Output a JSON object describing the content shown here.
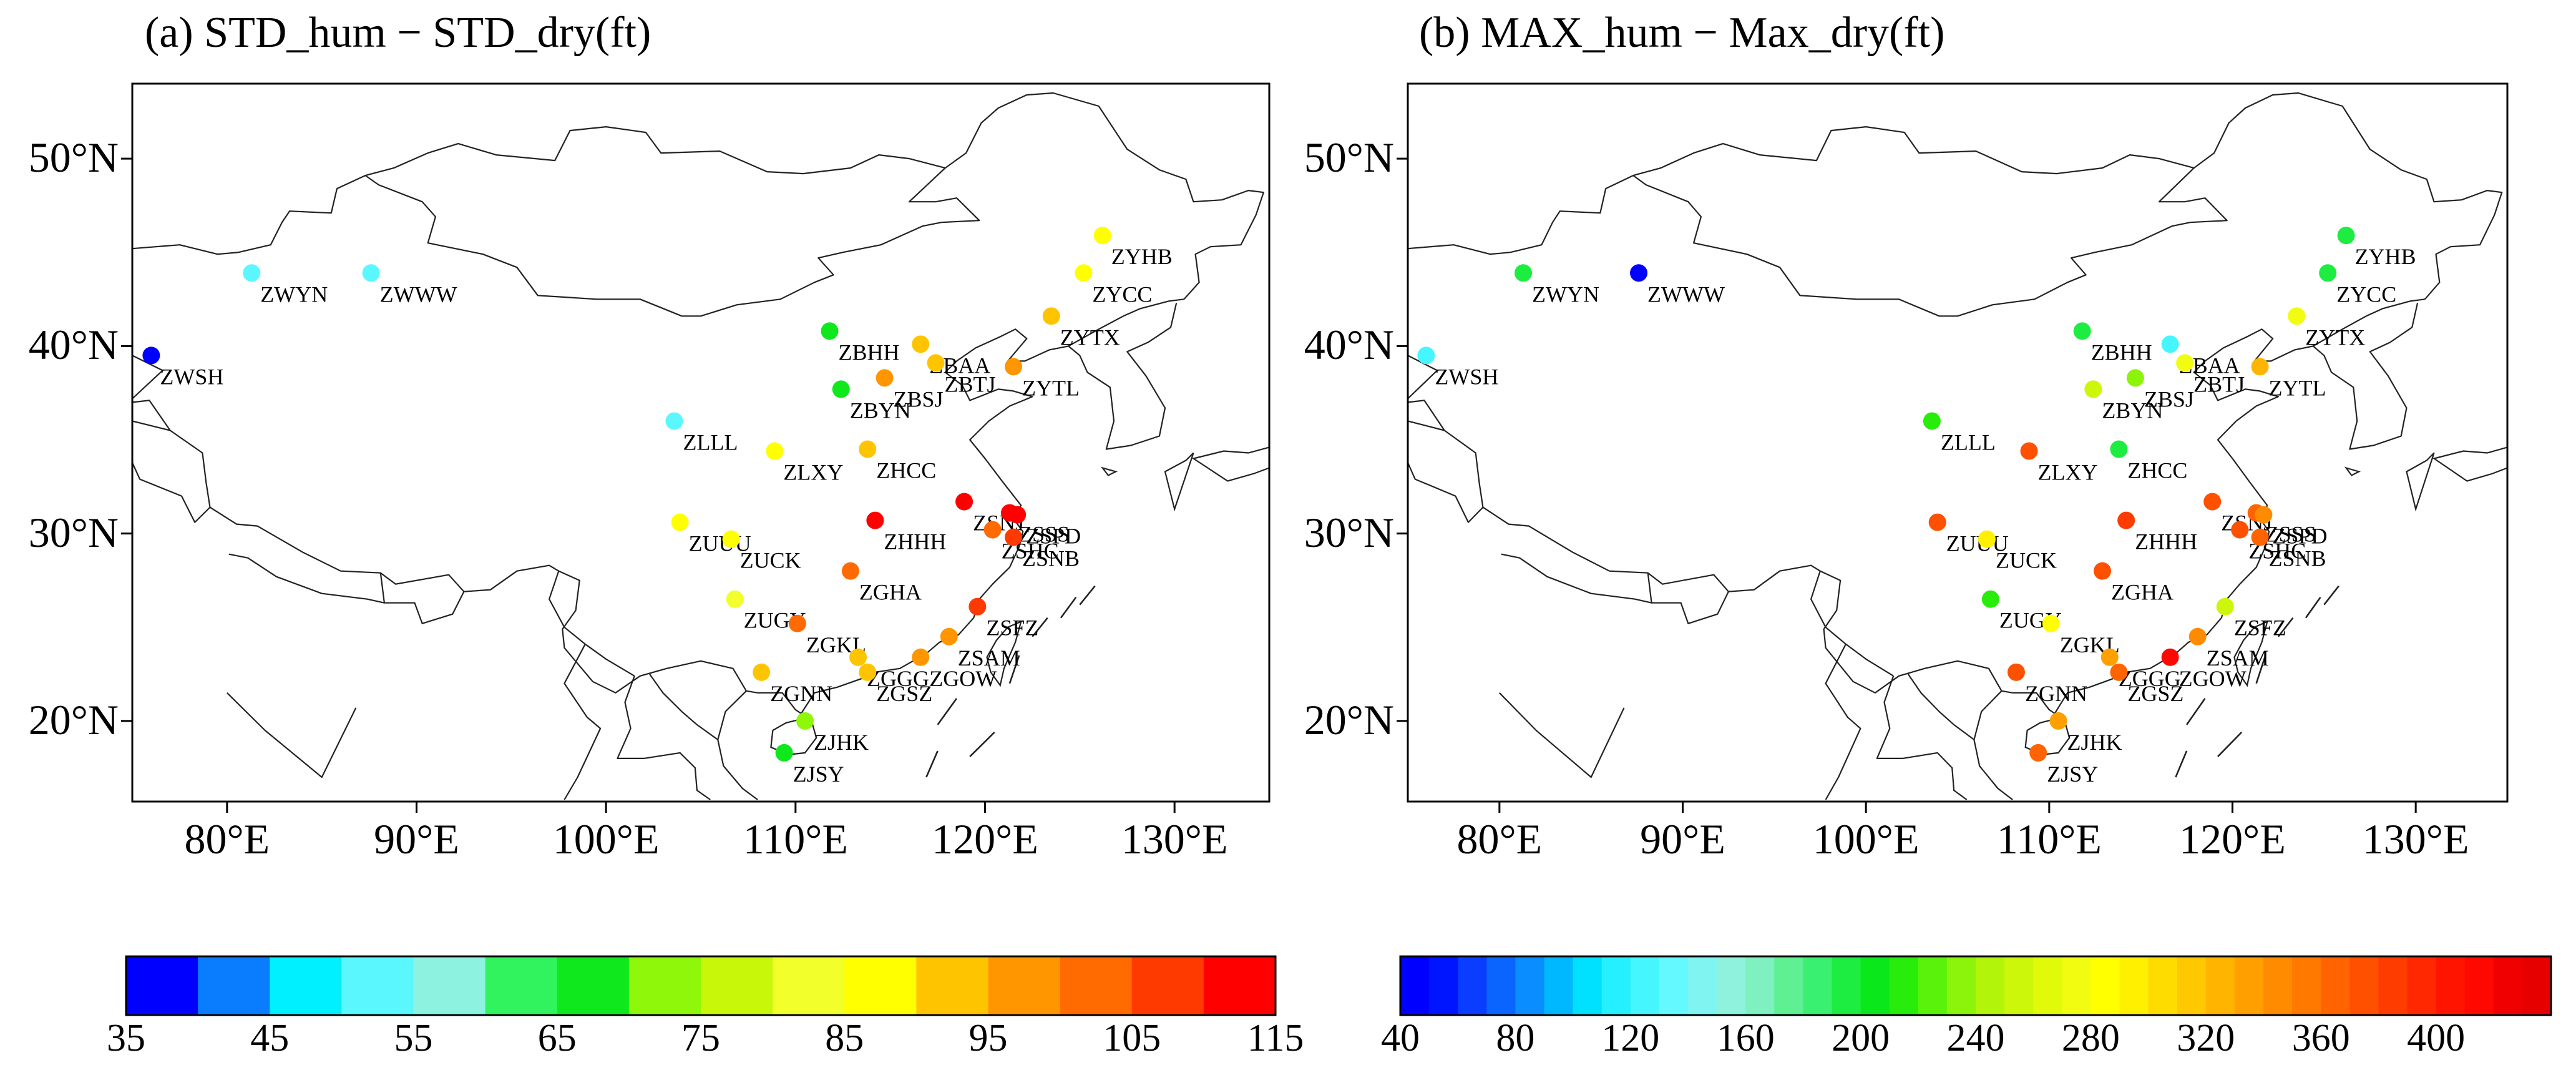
{
  "panels": [
    {
      "id": "a",
      "title": "(a) STD_hum − STD_dry(ft)",
      "lat_labels": [
        "50°N",
        "40°N",
        "30°N",
        "20°N"
      ],
      "lon_labels": [
        "80°E",
        "90°E",
        "100°E",
        "110°E",
        "120°E",
        "130°E"
      ],
      "colorbar": {
        "min": 35,
        "max": 115,
        "step": 5,
        "tick_values": [
          35,
          45,
          55,
          65,
          75,
          85,
          95,
          105,
          115
        ],
        "tick_labels": [
          "35",
          "45",
          "55",
          "65",
          "75",
          "85",
          "95",
          "105",
          "115"
        ],
        "colors": [
          "#0000ff",
          "#0a7dff",
          "#00f0ff",
          "#5af7ff",
          "#8ef2e0",
          "#31f35e",
          "#0fe81c",
          "#8ff70a",
          "#c9f70a",
          "#f2ff2a",
          "#ffff00",
          "#ffc400",
          "#ff9600",
          "#ff6b00",
          "#ff3a00",
          "#ff0000"
        ]
      },
      "stations": [
        {
          "code": "ZWSH",
          "lon": 76.0,
          "lat": 39.5,
          "value": 37
        },
        {
          "code": "ZWYN",
          "lon": 81.3,
          "lat": 43.9,
          "value": 53
        },
        {
          "code": "ZWWW",
          "lon": 87.6,
          "lat": 43.9,
          "value": 53
        },
        {
          "code": "ZYHB",
          "lon": 126.2,
          "lat": 45.9,
          "value": 85
        },
        {
          "code": "ZYCC",
          "lon": 125.2,
          "lat": 43.9,
          "value": 86
        },
        {
          "code": "ZYTX",
          "lon": 123.5,
          "lat": 41.6,
          "value": 93
        },
        {
          "code": "ZBHH",
          "lon": 111.8,
          "lat": 40.8,
          "value": 68
        },
        {
          "code": "ZBAA",
          "lon": 116.6,
          "lat": 40.1,
          "value": 93
        },
        {
          "code": "ZBTJ",
          "lon": 117.4,
          "lat": 39.1,
          "value": 90
        },
        {
          "code": "ZYTL",
          "lon": 121.5,
          "lat": 38.9,
          "value": 99
        },
        {
          "code": "ZBYN",
          "lon": 112.4,
          "lat": 37.7,
          "value": 68
        },
        {
          "code": "ZBSJ",
          "lon": 114.7,
          "lat": 38.3,
          "value": 99
        },
        {
          "code": "ZLLL",
          "lon": 103.6,
          "lat": 36.0,
          "value": 53
        },
        {
          "code": "ZLXY",
          "lon": 108.9,
          "lat": 34.4,
          "value": 85
        },
        {
          "code": "ZHCC",
          "lon": 113.8,
          "lat": 34.5,
          "value": 93
        },
        {
          "code": "ZSNJ",
          "lon": 118.9,
          "lat": 31.7,
          "value": 110
        },
        {
          "code": "ZSSS",
          "lon": 121.3,
          "lat": 31.1,
          "value": 110
        },
        {
          "code": "ZSPD",
          "lon": 121.7,
          "lat": 31.0,
          "value": 113
        },
        {
          "code": "ZSHC",
          "lon": 120.4,
          "lat": 30.2,
          "value": 103
        },
        {
          "code": "ZSNB",
          "lon": 121.5,
          "lat": 29.8,
          "value": 106
        },
        {
          "code": "ZUUU",
          "lon": 103.9,
          "lat": 30.6,
          "value": 85
        },
        {
          "code": "ZUCK",
          "lon": 106.6,
          "lat": 29.7,
          "value": 85
        },
        {
          "code": "ZHHH",
          "lon": 114.2,
          "lat": 30.7,
          "value": 113
        },
        {
          "code": "ZGHA",
          "lon": 112.9,
          "lat": 28.0,
          "value": 103
        },
        {
          "code": "ZUGY",
          "lon": 106.8,
          "lat": 26.5,
          "value": 83
        },
        {
          "code": "ZSFZ",
          "lon": 119.6,
          "lat": 26.1,
          "value": 108
        },
        {
          "code": "ZGKL",
          "lon": 110.1,
          "lat": 25.2,
          "value": 103
        },
        {
          "code": "ZSAM",
          "lon": 118.1,
          "lat": 24.5,
          "value": 99
        },
        {
          "code": "ZGGG",
          "lon": 113.3,
          "lat": 23.4,
          "value": 93
        },
        {
          "code": "ZGNN",
          "lon": 108.2,
          "lat": 22.6,
          "value": 93
        },
        {
          "code": "ZGOW",
          "lon": 116.6,
          "lat": 23.4,
          "value": 99
        },
        {
          "code": "ZGSZ",
          "lon": 113.8,
          "lat": 22.6,
          "value": 93
        },
        {
          "code": "ZJHK",
          "lon": 110.5,
          "lat": 20.0,
          "value": 73
        },
        {
          "code": "ZJSY",
          "lon": 109.4,
          "lat": 18.3,
          "value": 68
        }
      ]
    },
    {
      "id": "b",
      "title": "(b) MAX_hum − Max_dry(ft)",
      "lat_labels": [
        "50°N",
        "40°N",
        "30°N",
        "20°N"
      ],
      "lon_labels": [
        "80°E",
        "90°E",
        "100°E",
        "110°E",
        "120°E",
        "130°E"
      ],
      "colorbar": {
        "min": 40,
        "max": 440,
        "step": 10,
        "tick_values": [
          40,
          80,
          120,
          160,
          200,
          240,
          280,
          320,
          360,
          400
        ],
        "tick_labels": [
          "40",
          "80",
          "120",
          "160",
          "200",
          "240",
          "280",
          "320",
          "360",
          "400"
        ],
        "colors": [
          "#0000ff",
          "#0015ff",
          "#0a3dff",
          "#0a65ff",
          "#0a8dff",
          "#00b8ff",
          "#00e0ff",
          "#24f0ff",
          "#46f6ff",
          "#64f8ff",
          "#80f4f0",
          "#8ff2dc",
          "#7ff0c0",
          "#5ef092",
          "#3af070",
          "#1ced40",
          "#0ae81c",
          "#28ec0a",
          "#5af20a",
          "#8cf40a",
          "#b2f40a",
          "#ccf60a",
          "#e0fa0a",
          "#f2fc10",
          "#ffff00",
          "#fff000",
          "#ffdc00",
          "#ffc800",
          "#ffb400",
          "#ffa000",
          "#ff8c00",
          "#ff7800",
          "#ff6400",
          "#ff5000",
          "#ff3c00",
          "#ff2800",
          "#ff1400",
          "#ff0800",
          "#f00000",
          "#e60000"
        ]
      },
      "stations": [
        {
          "code": "ZWSH",
          "lon": 76.0,
          "lat": 39.5,
          "value": 125
        },
        {
          "code": "ZWYN",
          "lon": 81.3,
          "lat": 43.9,
          "value": 190
        },
        {
          "code": "ZWWW",
          "lon": 87.6,
          "lat": 43.9,
          "value": 45
        },
        {
          "code": "ZYHB",
          "lon": 126.2,
          "lat": 45.9,
          "value": 195
        },
        {
          "code": "ZYCC",
          "lon": 125.2,
          "lat": 43.9,
          "value": 195
        },
        {
          "code": "ZYTX",
          "lon": 123.5,
          "lat": 41.6,
          "value": 275
        },
        {
          "code": "ZBHH",
          "lon": 111.8,
          "lat": 40.8,
          "value": 195
        },
        {
          "code": "ZBAA",
          "lon": 116.6,
          "lat": 40.1,
          "value": 125
        },
        {
          "code": "ZBTJ",
          "lon": 117.4,
          "lat": 39.1,
          "value": 275
        },
        {
          "code": "ZYTL",
          "lon": 121.5,
          "lat": 38.9,
          "value": 325
        },
        {
          "code": "ZBYN",
          "lon": 112.4,
          "lat": 37.7,
          "value": 255
        },
        {
          "code": "ZBSJ",
          "lon": 114.7,
          "lat": 38.3,
          "value": 235
        },
        {
          "code": "ZLLL",
          "lon": 103.6,
          "lat": 36.0,
          "value": 215
        },
        {
          "code": "ZLXY",
          "lon": 108.9,
          "lat": 34.4,
          "value": 375
        },
        {
          "code": "ZHCC",
          "lon": 113.8,
          "lat": 34.5,
          "value": 195
        },
        {
          "code": "ZSNJ",
          "lon": 118.9,
          "lat": 31.7,
          "value": 375
        },
        {
          "code": "ZSSS",
          "lon": 121.3,
          "lat": 31.1,
          "value": 365
        },
        {
          "code": "ZSPD",
          "lon": 121.7,
          "lat": 31.0,
          "value": 345
        },
        {
          "code": "ZSHC",
          "lon": 120.4,
          "lat": 30.2,
          "value": 375
        },
        {
          "code": "ZSNB",
          "lon": 121.5,
          "lat": 29.8,
          "value": 365
        },
        {
          "code": "ZUUU",
          "lon": 103.9,
          "lat": 30.6,
          "value": 375
        },
        {
          "code": "ZUCK",
          "lon": 106.6,
          "lat": 29.7,
          "value": 295
        },
        {
          "code": "ZHHH",
          "lon": 114.2,
          "lat": 30.7,
          "value": 385
        },
        {
          "code": "ZGHA",
          "lon": 112.9,
          "lat": 28.0,
          "value": 375
        },
        {
          "code": "ZUGY",
          "lon": 106.8,
          "lat": 26.5,
          "value": 215
        },
        {
          "code": "ZSFZ",
          "lon": 119.6,
          "lat": 26.1,
          "value": 255
        },
        {
          "code": "ZGKL",
          "lon": 110.1,
          "lat": 25.2,
          "value": 285
        },
        {
          "code": "ZSAM",
          "lon": 118.1,
          "lat": 24.5,
          "value": 345
        },
        {
          "code": "ZGGG",
          "lon": 113.3,
          "lat": 23.4,
          "value": 335
        },
        {
          "code": "ZGNN",
          "lon": 108.2,
          "lat": 22.6,
          "value": 375
        },
        {
          "code": "ZGOW",
          "lon": 116.6,
          "lat": 23.4,
          "value": 415
        },
        {
          "code": "ZGSZ",
          "lon": 113.8,
          "lat": 22.6,
          "value": 365
        },
        {
          "code": "ZJHK",
          "lon": 110.5,
          "lat": 20.0,
          "value": 335
        },
        {
          "code": "ZJSY",
          "lon": 109.4,
          "lat": 18.3,
          "value": 365
        }
      ]
    }
  ]
}
